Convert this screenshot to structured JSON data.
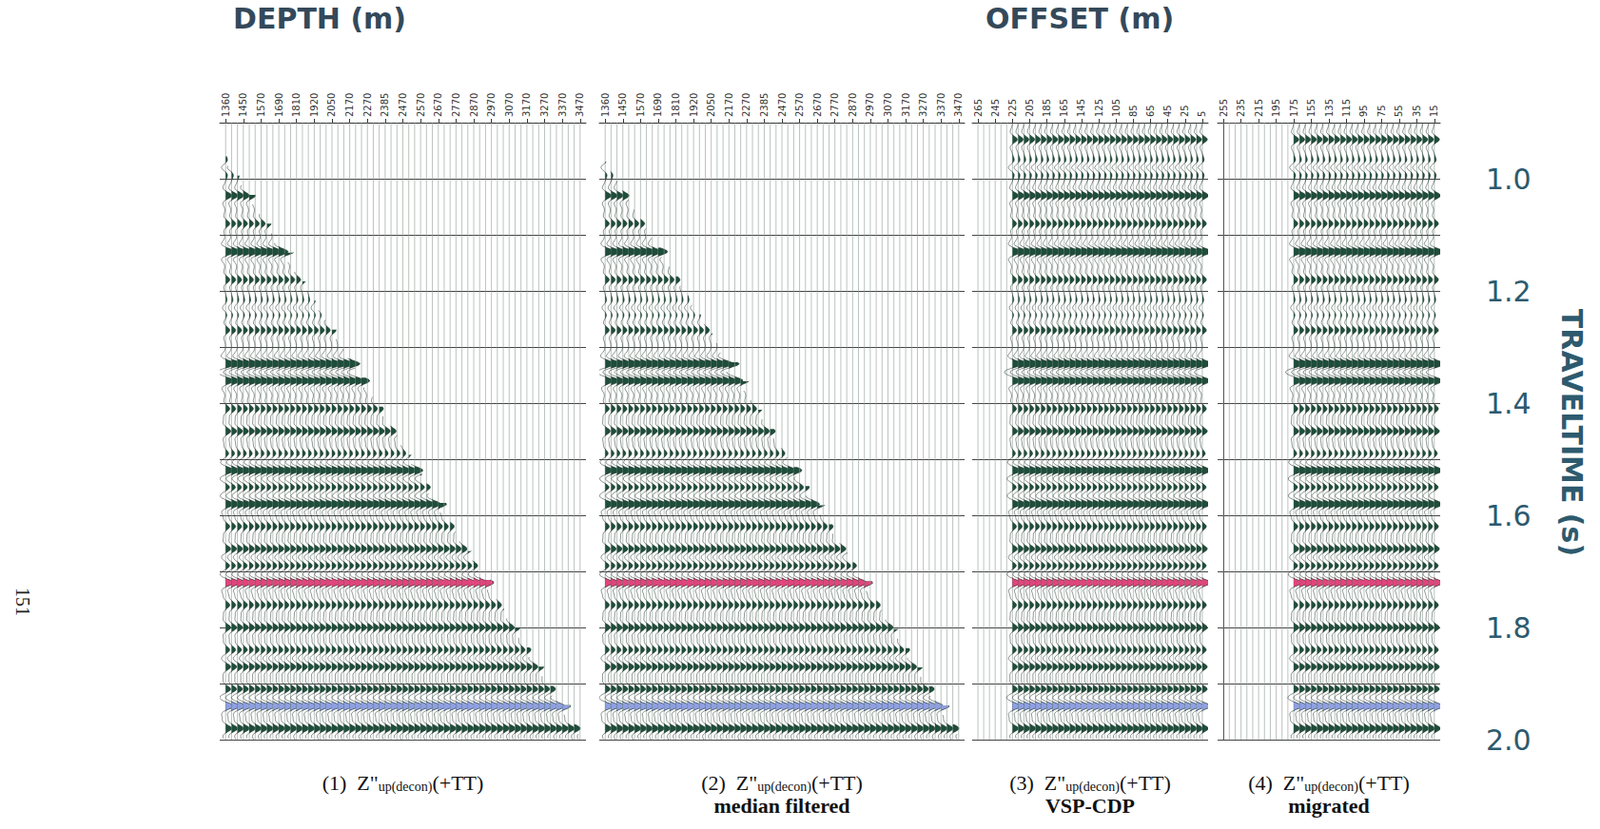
{
  "chart_data": {
    "type": "seismic_wiggle",
    "y_title": "TRAVELTIME (s)",
    "page_number": "151",
    "ylim": [
      0.9,
      2.0
    ],
    "yticks": [
      {
        "value": 1,
        "label": "1.0"
      },
      {
        "value": 1.2,
        "label": "1.2"
      },
      {
        "value": 1.4,
        "label": "1.4"
      },
      {
        "value": 1.6,
        "label": "1.6"
      },
      {
        "value": 1.8,
        "label": "1.8"
      },
      {
        "value": 2,
        "label": "2.0"
      }
    ],
    "minor_yticks": [
      1.1,
      1.3,
      1.5,
      1.7,
      1.9
    ],
    "grid": true,
    "color": "#1f4d3b",
    "events": [
      {
        "time": 0.93,
        "amplitude": 0.5
      },
      {
        "time": 0.98,
        "amplitude": -0.4
      },
      {
        "time": 1.03,
        "amplitude": 0.6
      },
      {
        "time": 1.08,
        "amplitude": 0.4
      },
      {
        "time": 1.13,
        "amplitude": 0.9
      },
      {
        "time": 1.18,
        "amplitude": 0.4
      },
      {
        "time": 1.23,
        "amplitude": -0.3
      },
      {
        "time": 1.27,
        "amplitude": 0.4
      },
      {
        "time": 1.33,
        "amplitude": 1.0
      },
      {
        "time": 1.36,
        "amplitude": 0.8
      },
      {
        "time": 1.41,
        "amplitude": 0.4
      },
      {
        "time": 1.45,
        "amplitude": 0.5
      },
      {
        "time": 1.49,
        "amplitude": 0.3
      },
      {
        "time": 1.52,
        "amplitude": 0.8
      },
      {
        "time": 1.55,
        "amplitude": 0.4
      },
      {
        "time": 1.58,
        "amplitude": 0.8
      },
      {
        "time": 1.62,
        "amplitude": 0.4
      },
      {
        "time": 1.66,
        "amplitude": 0.5
      },
      {
        "time": 1.69,
        "amplitude": 0.4
      },
      {
        "time": 1.72,
        "amplitude": 0.8,
        "color": "#e0457b"
      },
      {
        "time": 1.76,
        "amplitude": 0.4
      },
      {
        "time": 1.8,
        "amplitude": 0.5
      },
      {
        "time": 1.84,
        "amplitude": 0.4
      },
      {
        "time": 1.87,
        "amplitude": 0.5
      },
      {
        "time": 1.91,
        "amplitude": 0.5
      },
      {
        "time": 1.94,
        "amplitude": 0.8,
        "color": "#8f9fe0"
      },
      {
        "time": 1.98,
        "amplitude": 0.6
      }
    ],
    "panels": [
      {
        "x_title": "DEPTH (m)",
        "labels": [
          1360,
          1450,
          1570,
          1690,
          1810,
          1920,
          2050,
          2170,
          2270,
          2385,
          2470,
          2570,
          2670,
          2770,
          2870,
          2970,
          3070,
          3170,
          3270,
          3370,
          3470
        ],
        "trace_count": 61,
        "first_arrival": [
          0.96,
          1.99
        ],
        "caption": {
          "number": "(1)",
          "symbol": "Z\"",
          "subscript": "up(decon)",
          "suffix": "(+TT)"
        }
      },
      {
        "labels": [
          1360,
          1450,
          1570,
          1690,
          1810,
          1920,
          2050,
          2170,
          2270,
          2385,
          2470,
          2570,
          2670,
          2770,
          2870,
          2970,
          3070,
          3170,
          3270,
          3370,
          3470
        ],
        "trace_count": 61,
        "first_arrival": [
          0.97,
          1.99
        ],
        "caption": {
          "number": "(2)",
          "symbol": "Z\"",
          "subscript": "up(decon)",
          "suffix": "(+TT)",
          "subtitle": "median filtered"
        }
      },
      {
        "x_title": "OFFSET (m)",
        "labels": [
          265,
          245,
          225,
          205,
          185,
          165,
          145,
          125,
          105,
          85,
          65,
          45,
          25,
          5
        ],
        "trace_count": 40,
        "data_from": 225,
        "caption": {
          "number": "(3)",
          "symbol": "Z\"",
          "subscript": "up(decon)",
          "suffix": "(+TT)",
          "subtitle": "VSP-CDP"
        }
      },
      {
        "labels": [
          255,
          235,
          215,
          195,
          175,
          155,
          135,
          115,
          95,
          75,
          55,
          35,
          15
        ],
        "trace_count": 37,
        "data_from": 175,
        "caption": {
          "number": "(4)",
          "symbol": "Z\"",
          "subscript": "up(decon)",
          "suffix": "(+TT)",
          "subtitle": "migrated"
        }
      }
    ]
  }
}
